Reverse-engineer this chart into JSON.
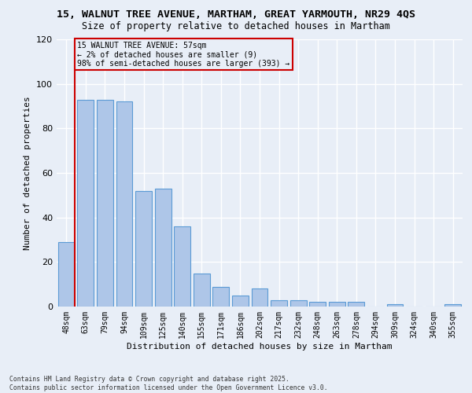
{
  "title_line1": "15, WALNUT TREE AVENUE, MARTHAM, GREAT YARMOUTH, NR29 4QS",
  "title_line2": "Size of property relative to detached houses in Martham",
  "xlabel": "Distribution of detached houses by size in Martham",
  "ylabel": "Number of detached properties",
  "footer": "Contains HM Land Registry data © Crown copyright and database right 2025.\nContains public sector information licensed under the Open Government Licence v3.0.",
  "categories": [
    "48sqm",
    "63sqm",
    "79sqm",
    "94sqm",
    "109sqm",
    "125sqm",
    "140sqm",
    "155sqm",
    "171sqm",
    "186sqm",
    "202sqm",
    "217sqm",
    "232sqm",
    "248sqm",
    "263sqm",
    "278sqm",
    "294sqm",
    "309sqm",
    "324sqm",
    "340sqm",
    "355sqm"
  ],
  "values": [
    29,
    93,
    93,
    92,
    52,
    53,
    36,
    15,
    9,
    5,
    8,
    3,
    3,
    2,
    2,
    2,
    0,
    1,
    0,
    0,
    1
  ],
  "bar_color": "#aec6e8",
  "bar_edge_color": "#5b9bd5",
  "subject_line_color": "#cc0000",
  "ylim": [
    0,
    120
  ],
  "yticks": [
    0,
    20,
    40,
    60,
    80,
    100,
    120
  ],
  "annotation_text": "15 WALNUT TREE AVENUE: 57sqm\n← 2% of detached houses are smaller (9)\n98% of semi-detached houses are larger (393) →",
  "annotation_box_color": "#cc0000",
  "bg_color": "#e8eef7",
  "grid_color": "#ffffff",
  "title_fontsize": 9.5,
  "subtitle_fontsize": 8.5
}
